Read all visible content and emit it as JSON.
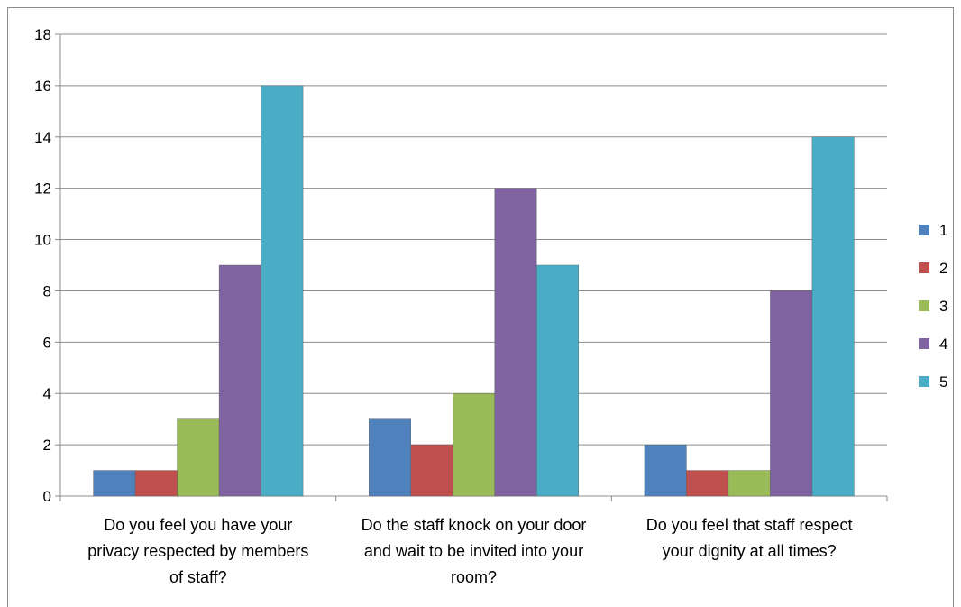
{
  "chart_data": {
    "type": "bar",
    "categories": [
      [
        "Do you feel you have your",
        "privacy respected by members",
        "of staff?"
      ],
      [
        "Do the staff knock on your door",
        "and wait to be invited into your",
        "room?"
      ],
      [
        "Do you feel that staff respect",
        "your dignity at all times?"
      ]
    ],
    "series": [
      {
        "name": "1",
        "color": "#4f81bd",
        "values": [
          1,
          3,
          2
        ]
      },
      {
        "name": "2",
        "color": "#c0504d",
        "values": [
          1,
          2,
          1
        ]
      },
      {
        "name": "3",
        "color": "#9bbb59",
        "values": [
          3,
          4,
          1
        ]
      },
      {
        "name": "4",
        "color": "#8064a2",
        "values": [
          9,
          12,
          8
        ]
      },
      {
        "name": "5",
        "color": "#4bacc6",
        "values": [
          16,
          9,
          14
        ]
      }
    ],
    "ylim": [
      0,
      18
    ],
    "yticks": [
      0,
      2,
      4,
      6,
      8,
      10,
      12,
      14,
      16,
      18
    ],
    "grid": true,
    "legend_position": "right",
    "title": "",
    "xlabel": "",
    "ylabel": ""
  }
}
